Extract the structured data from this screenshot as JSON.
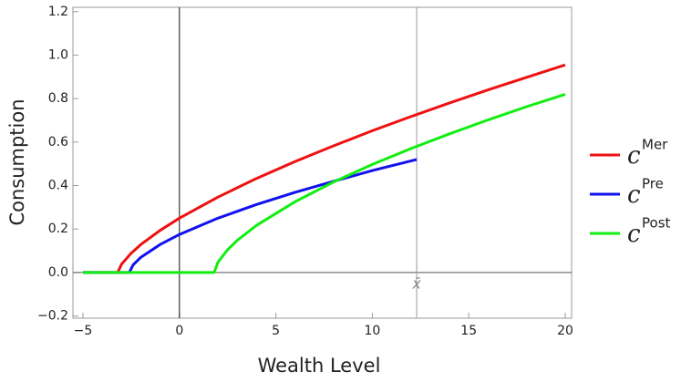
{
  "chart_data": {
    "type": "line",
    "xlabel": "Wealth Level",
    "ylabel": "Consumption",
    "xlim": [
      -5.52,
      20.33
    ],
    "ylim": [
      -0.21,
      1.22
    ],
    "xticks": [
      {
        "value": -5,
        "label": "−5"
      },
      0,
      5,
      10,
      15,
      20
    ],
    "yticks": [
      {
        "value": -0.2,
        "label": "−0.2"
      },
      {
        "value": 0,
        "label": "0.0"
      },
      0.2,
      0.4,
      0.6,
      0.8,
      {
        "value": 1,
        "label": "1.0"
      },
      1.2
    ],
    "annotations": [
      {
        "text": "x̄",
        "x": 12.3
      }
    ],
    "series": [
      {
        "name": "c",
        "superscript": "Mer",
        "color": "#ee1111",
        "x": [
          -5,
          -3.2,
          -3,
          -2.5,
          -2,
          -1,
          0,
          2,
          4,
          6,
          8,
          10,
          12,
          14,
          16,
          18,
          20
        ],
        "values": [
          0,
          0,
          0.038,
          0.089,
          0.129,
          0.194,
          0.25,
          0.347,
          0.433,
          0.511,
          0.583,
          0.652,
          0.717,
          0.78,
          0.84,
          0.898,
          0.955
        ]
      },
      {
        "name": "c",
        "superscript": "Pre",
        "color": "#1111ee",
        "x": [
          -5,
          -2.6,
          -2.4,
          -2,
          -1,
          0,
          2,
          4,
          6,
          8,
          10,
          12.3
        ],
        "values": [
          0,
          0,
          0.035,
          0.07,
          0.129,
          0.175,
          0.25,
          0.313,
          0.369,
          0.42,
          0.469,
          0.52
        ]
      },
      {
        "name": "c",
        "superscript": "Post",
        "color": "#11ee11",
        "x": [
          -5,
          1.8,
          2,
          2.5,
          3,
          4,
          6,
          8,
          10,
          12,
          14,
          16,
          18,
          20
        ],
        "values": [
          0,
          0,
          0.048,
          0.105,
          0.148,
          0.217,
          0.326,
          0.417,
          0.497,
          0.57,
          0.638,
          0.702,
          0.763,
          0.82
        ]
      }
    ]
  }
}
